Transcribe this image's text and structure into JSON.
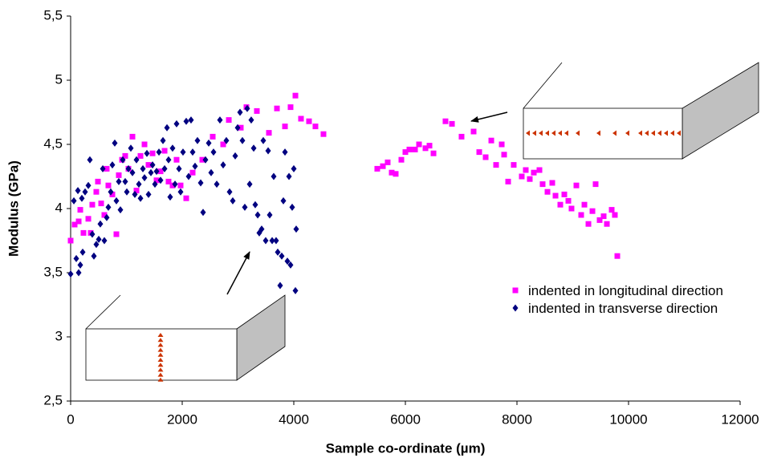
{
  "chart_data": {
    "type": "scatter",
    "xlabel": "Sample co-ordinate (µm)",
    "ylabel": "Modulus (GPa)",
    "xlim": [
      0,
      12000
    ],
    "xticks": [
      0,
      2000,
      4000,
      6000,
      8000,
      10000,
      12000
    ],
    "ylim": [
      2.5,
      5.5
    ],
    "yticks": [
      {
        "value": 2.5,
        "label": "2,5"
      },
      3,
      {
        "value": 3.5,
        "label": "3,5"
      },
      4,
      {
        "value": 4.5,
        "label": "4,5"
      },
      5,
      {
        "value": 5.5,
        "label": "5,5"
      }
    ],
    "grid": false,
    "legend": "right",
    "series": [
      {
        "name": "indented in longitudinal direction",
        "color": "#ff00ff",
        "marker": "square",
        "x": [
          0,
          72,
          144,
          173,
          230,
          317,
          360,
          388,
          460,
          489,
          547,
          604,
          647,
          676,
          748,
          820,
          863,
          921,
          978,
          1036,
          1108,
          1180,
          1252,
          1324,
          1396,
          1468,
          1540,
          1612,
          1684,
          1755,
          1827,
          1899,
          1971,
          2072,
          2187,
          2360,
          2547,
          2734,
          2835,
          3050,
          3151,
          3338,
          3554,
          3698,
          3842,
          3942,
          4029,
          4129,
          4273,
          4388,
          4532,
          5496,
          5597,
          5683,
          5755,
          5827,
          5928,
          6000,
          6072,
          6173,
          6245,
          6360,
          6432,
          6504,
          6719,
          6835,
          7007,
          7223,
          7324,
          7439,
          7540,
          7626,
          7727,
          7770,
          7842,
          7942,
          8086,
          8158,
          8230,
          8302,
          8403,
          8460,
          8547,
          8633,
          8691,
          8777,
          8849,
          8921,
          8978,
          9065,
          9151,
          9209,
          9281,
          9353,
          9410,
          9482,
          9554,
          9612,
          9698,
          9755,
          9799
        ],
        "values": [
          3.75,
          3.875,
          3.9,
          3.99,
          3.81,
          3.92,
          3.81,
          4.03,
          4.13,
          4.21,
          4.04,
          3.95,
          4.31,
          4.18,
          4.11,
          3.8,
          4.26,
          4.38,
          4.41,
          4.31,
          4.56,
          4.14,
          4.41,
          4.5,
          4.34,
          4.43,
          4.22,
          4.29,
          4.45,
          4.21,
          4.18,
          4.38,
          4.18,
          4.08,
          4.28,
          4.38,
          4.56,
          4.5,
          4.69,
          4.63,
          4.79,
          4.76,
          4.59,
          4.78,
          4.64,
          4.79,
          4.88,
          4.7,
          4.68,
          4.64,
          4.58,
          4.31,
          4.33,
          4.36,
          4.28,
          4.27,
          4.38,
          4.44,
          4.46,
          4.46,
          4.5,
          4.47,
          4.49,
          4.43,
          4.68,
          4.66,
          4.56,
          4.6,
          4.44,
          4.4,
          4.53,
          4.34,
          4.5,
          4.42,
          4.21,
          4.34,
          4.25,
          4.3,
          4.23,
          4.28,
          4.3,
          4.19,
          4.13,
          4.2,
          4.1,
          4.03,
          4.11,
          4.06,
          4.0,
          4.18,
          3.95,
          4.03,
          3.88,
          3.98,
          4.19,
          3.91,
          3.94,
          3.88,
          3.99,
          3.95,
          3.63
        ]
      },
      {
        "name": "indented in transverse direction",
        "color": "#000080",
        "marker": "diamond",
        "x": [
          0,
          101,
          144,
          173,
          216,
          58,
          130,
          201,
          259,
          317,
          345,
          388,
          417,
          460,
          504,
          532,
          576,
          604,
          647,
          676,
          719,
          748,
          791,
          820,
          863,
          892,
          935,
          978,
          1007,
          1036,
          1079,
          1108,
          1151,
          1180,
          1223,
          1252,
          1295,
          1324,
          1367,
          1396,
          1439,
          1468,
          1511,
          1540,
          1583,
          1612,
          1655,
          1684,
          1727,
          1755,
          1784,
          1827,
          1871,
          1899,
          1942,
          1971,
          2014,
          2072,
          2115,
          2158,
          2187,
          2230,
          2273,
          2331,
          2374,
          2417,
          2475,
          2518,
          2561,
          2619,
          2676,
          2734,
          2791,
          2849,
          2906,
          2950,
          2993,
          3036,
          3079,
          3122,
          3165,
          3209,
          3237,
          3281,
          3309,
          3353,
          3381,
          3424,
          3453,
          3496,
          3540,
          3568,
          3612,
          3640,
          3683,
          3712,
          3755,
          3784,
          3813,
          3842,
          3885,
          3914,
          3942,
          3971,
          4000,
          4029,
          4043
        ],
        "values": [
          3.49,
          3.61,
          3.5,
          3.56,
          3.66,
          4.06,
          4.14,
          4.08,
          4.13,
          4.18,
          4.38,
          3.8,
          3.63,
          3.72,
          3.76,
          3.88,
          4.31,
          3.75,
          3.93,
          4.01,
          4.13,
          4.34,
          4.51,
          4.06,
          4.21,
          3.99,
          4.38,
          4.21,
          4.13,
          4.31,
          4.47,
          4.28,
          4.11,
          4.38,
          4.19,
          4.08,
          4.31,
          4.24,
          4.43,
          4.11,
          4.28,
          4.34,
          4.19,
          4.29,
          4.44,
          4.22,
          4.53,
          4.31,
          4.63,
          4.38,
          4.09,
          4.47,
          4.19,
          4.66,
          4.31,
          4.13,
          4.44,
          4.68,
          4.25,
          4.69,
          4.44,
          4.33,
          4.53,
          4.2,
          3.97,
          4.38,
          4.51,
          4.28,
          4.44,
          4.19,
          4.69,
          4.34,
          4.53,
          4.13,
          4.06,
          4.41,
          4.63,
          4.75,
          4.53,
          4.01,
          4.78,
          4.19,
          4.69,
          4.47,
          4.03,
          3.95,
          3.81,
          3.84,
          4.53,
          3.75,
          4.45,
          3.95,
          3.75,
          4.25,
          3.75,
          3.66,
          3.4,
          3.63,
          4.06,
          4.44,
          3.59,
          4.25,
          3.56,
          4.01,
          4.31,
          3.36,
          3.84
        ]
      }
    ]
  }
}
